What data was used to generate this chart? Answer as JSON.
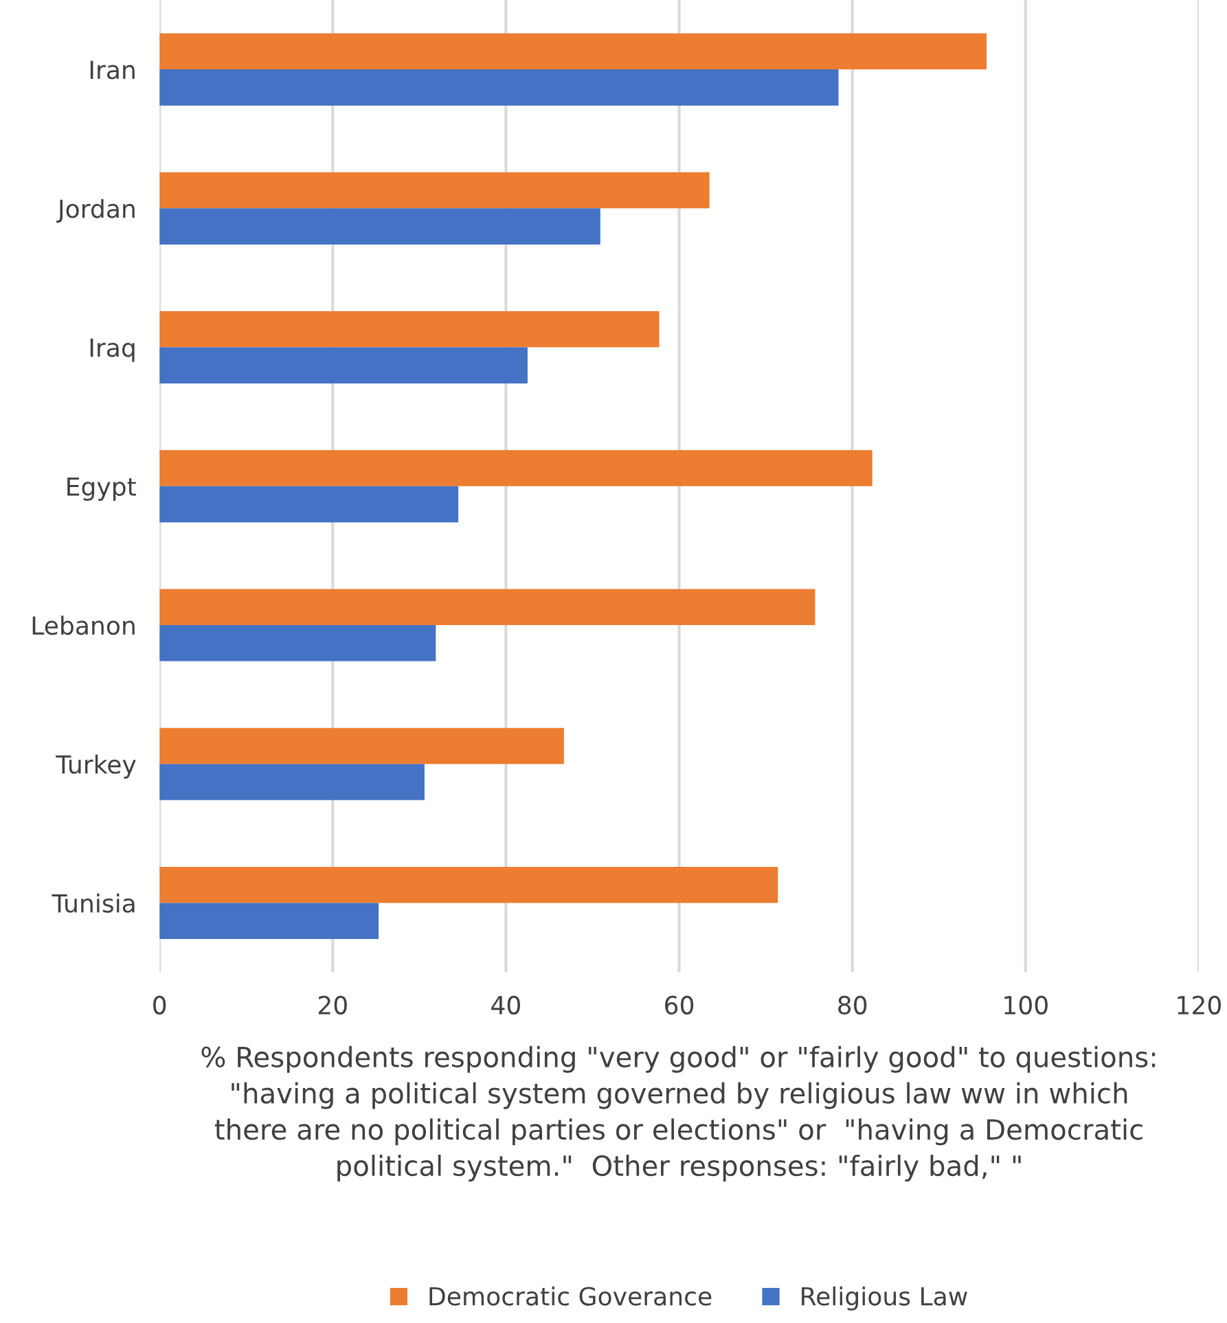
{
  "chart_data": {
    "type": "bar",
    "orientation": "horizontal",
    "categories": [
      "Iran",
      "Jordan",
      "Iraq",
      "Egypt",
      "Lebanon",
      "Turkey",
      "Tunisia"
    ],
    "series": [
      {
        "name": "Democratic Goverance",
        "color": "#ed7d31",
        "values": [
          95.5,
          63.5,
          57.7,
          82.3,
          75.7,
          46.7,
          71.4
        ]
      },
      {
        "name": "Religious Law",
        "color": "#4472c4",
        "values": [
          78.4,
          50.9,
          42.5,
          34.5,
          31.9,
          30.6,
          25.3
        ]
      }
    ],
    "xlabel": "% Respondents responding \"very good\" or \"fairly good\" to questions:\n\"having a political system governed by religious law ww in which\nthere are no political parties or elections\" or  \"having a Democratic\npolitical system.\"  Other responses: \"fairly bad,\" \"",
    "xlim": [
      0,
      120
    ],
    "xticks": [
      0,
      20,
      40,
      60,
      80,
      100,
      120
    ],
    "grid": "x",
    "legend": "bottom"
  }
}
